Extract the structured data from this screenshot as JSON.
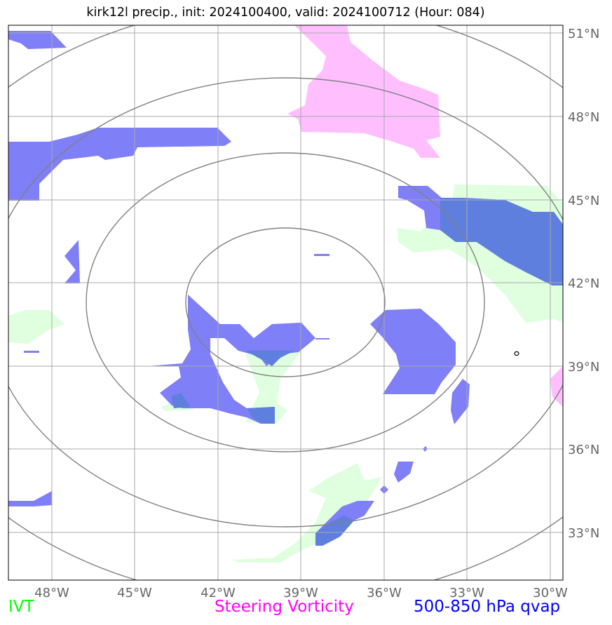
{
  "title": "kirk12l precip., init: 2024100400, valid: 2024100712 (Hour: 084)",
  "lon_labels": [
    "48°W",
    "45°W",
    "42°W",
    "39°W",
    "36°W",
    "33°W",
    "30°W"
  ],
  "lat_labels": [
    "51°N",
    "48°N",
    "45°N",
    "42°N",
    "39°N",
    "36°N",
    "33°N"
  ],
  "legend": [
    {
      "label": "IVT",
      "color": "#00ff00"
    },
    {
      "label": "Steering Vorticity",
      "color": "#ff00ff"
    },
    {
      "label": "500-850 hPa qvap",
      "color": "#0000ff"
    }
  ],
  "colors": {
    "ivt_fill": "#dfffdf",
    "vorticity_fill": "#ffbfff",
    "qvap_fill": "#7f7ff7",
    "overlap_fill": "#5f7fdf",
    "range_rings": "#808080",
    "gridlines": "#aaaaaa"
  }
}
